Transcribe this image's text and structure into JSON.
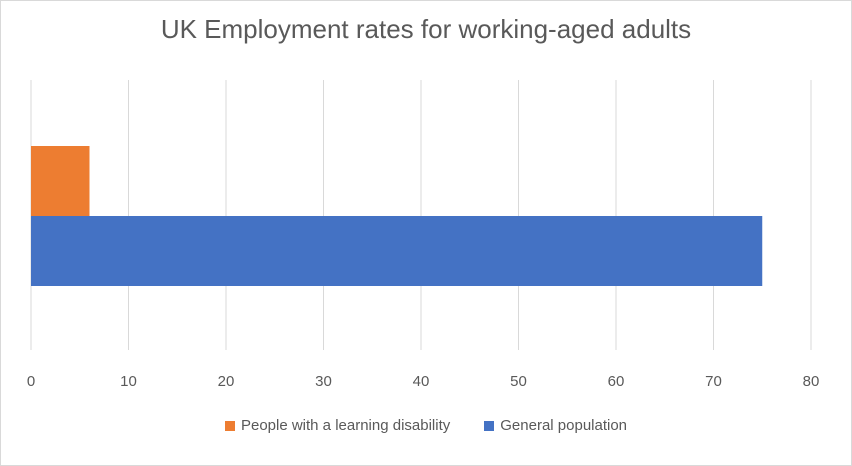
{
  "chart_data": {
    "type": "bar",
    "orientation": "horizontal",
    "title": "UK Employment rates for working-aged adults",
    "xlabel": "",
    "ylabel": "",
    "xlim": [
      0,
      80
    ],
    "xticks": [
      0,
      10,
      20,
      30,
      40,
      50,
      60,
      70,
      80
    ],
    "grid": "vertical",
    "legend_position": "bottom",
    "series": [
      {
        "name": "People with a learning disability",
        "values": [
          6
        ],
        "color": "#ED7D31"
      },
      {
        "name": "General population",
        "values": [
          75
        ],
        "color": "#4472C4"
      }
    ]
  }
}
